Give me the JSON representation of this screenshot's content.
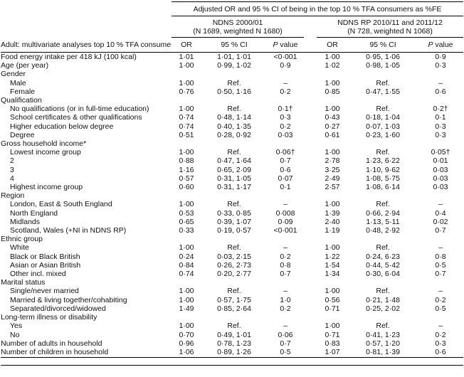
{
  "table": {
    "spanning_header": "Adjusted OR and 95 % CI of being in the top 10 % TFA consumers as %FE",
    "groups": [
      {
        "line1": "NDNS 2000/01",
        "line2": "(N 1689, weighted N 1680)"
      },
      {
        "line1": "NDNS RP 2010/11 and 2011/12",
        "line2": "(N 728, weighted N 1068)"
      }
    ],
    "stub_header": "Adult: multivariate analyses top 10 % TFA consumers",
    "col_headers": {
      "or": "OR",
      "ci": "95 % CI",
      "p_italic": "P",
      "p_rest": " value"
    },
    "rows": [
      {
        "label": "Food energy intake per 418 kJ (100 kcal)",
        "indent": 0,
        "cells": [
          "1·01",
          "1·01, 1·01",
          "<0·001",
          "1·00",
          "0·95, 1·06",
          "0·9"
        ]
      },
      {
        "label": "Age (per year)",
        "indent": 0,
        "cells": [
          "1·00",
          "0·99, 1·02",
          "0·9",
          "1·02",
          "0·98, 1·05",
          "0·3"
        ]
      },
      {
        "label": "Gender",
        "indent": 0,
        "cells": null
      },
      {
        "label": "Male",
        "indent": 1,
        "cells": [
          "1·00",
          "Ref.",
          "–",
          "1·00",
          "Ref.",
          "–"
        ]
      },
      {
        "label": "Female",
        "indent": 1,
        "cells": [
          "0·76",
          "0·50, 1·16",
          "0·2",
          "0·85",
          "0·47, 1·55",
          "0·6"
        ]
      },
      {
        "label": "Qualification",
        "indent": 0,
        "cells": null
      },
      {
        "label": "No qualifications (or in full-time education)",
        "indent": 1,
        "cells": [
          "1·00",
          "Ref.",
          "0·1†",
          "1·00",
          "Ref.",
          "0·2†"
        ]
      },
      {
        "label": "School certificates & other qualifications",
        "indent": 1,
        "cells": [
          "0·74",
          "0·48, 1·14",
          "0·3",
          "0·43",
          "0·18, 1·04",
          "0·1"
        ]
      },
      {
        "label": "Higher education below degree",
        "indent": 1,
        "cells": [
          "0·74",
          "0·40, 1·35",
          "0·2",
          "0·27",
          "0·07, 1·03",
          "0·3"
        ]
      },
      {
        "label": "Degree",
        "indent": 1,
        "cells": [
          "0·51",
          "0·28, 0·92",
          "0·03",
          "0·61",
          "0·23, 1·60",
          "0·3"
        ]
      },
      {
        "label": "Gross household income*",
        "indent": 0,
        "cells": null
      },
      {
        "label": "Lowest income group",
        "indent": 1,
        "cells": [
          "1·00",
          "Ref.",
          "0·06†",
          "1·00",
          "Ref.",
          "0·05†"
        ]
      },
      {
        "label": "2",
        "indent": 1,
        "cells": [
          "0·88",
          "0·47, 1·64",
          "0·7",
          "2·78",
          "1·23, 6·22",
          "0·01"
        ]
      },
      {
        "label": "3",
        "indent": 1,
        "cells": [
          "1·16",
          "0·65, 2·09",
          "0·6",
          "3·25",
          "1·10, 9·62",
          "0·03"
        ]
      },
      {
        "label": "4",
        "indent": 1,
        "cells": [
          "0·57",
          "0·31, 1·05",
          "0·07",
          "2·49",
          "1·08, 5·75",
          "0·03"
        ]
      },
      {
        "label": "Highest income group",
        "indent": 1,
        "cells": [
          "0·60",
          "0·31, 1·17",
          "0·1",
          "2·57",
          "1·08, 6·14",
          "0·03"
        ]
      },
      {
        "label": "Region",
        "indent": 0,
        "cells": null
      },
      {
        "label": "London, East & South England",
        "indent": 1,
        "cells": [
          "1·00",
          "Ref.",
          "–",
          "1·00",
          "Ref.",
          "–"
        ]
      },
      {
        "label": "North England",
        "indent": 1,
        "cells": [
          "0·53",
          "0·33, 0·85",
          "0·008",
          "1·39",
          "0·66, 2·94",
          "0·4"
        ]
      },
      {
        "label": "Midlands",
        "indent": 1,
        "cells": [
          "0·65",
          "0·39, 1·07",
          "0·09",
          "2·40",
          "1·13, 5·11",
          "0·02"
        ]
      },
      {
        "label": "Scotland, Wales (+NI in NDNS RP)",
        "indent": 1,
        "cells": [
          "0·33",
          "0·19, 0·57",
          "<0·001",
          "1·19",
          "0·48, 2·92",
          "0·7"
        ]
      },
      {
        "label": "Ethnic group",
        "indent": 0,
        "cells": null
      },
      {
        "label": "White",
        "indent": 1,
        "cells": [
          "1·00",
          "Ref.",
          "–",
          "1·00",
          "Ref.",
          "–"
        ]
      },
      {
        "label": "Black or Black British",
        "indent": 1,
        "cells": [
          "0·24",
          "0·03, 2·15",
          "0·2",
          "1·22",
          "0·24, 6·23",
          "0·8"
        ]
      },
      {
        "label": "Asian or Asian British",
        "indent": 1,
        "cells": [
          "0·84",
          "0·26, 2·73",
          "0·8",
          "1·54",
          "0·44, 5·42",
          "0·5"
        ]
      },
      {
        "label": "Other incl. mixed",
        "indent": 1,
        "cells": [
          "0·74",
          "0·20, 2·77",
          "0·7",
          "1·34",
          "0·30, 6·04",
          "0·7"
        ]
      },
      {
        "label": "Marital status",
        "indent": 0,
        "cells": null
      },
      {
        "label": "Single/never married",
        "indent": 1,
        "cells": [
          "1·00",
          "Ref.",
          "–",
          "1·00",
          "Ref.",
          "–"
        ]
      },
      {
        "label": "Married & living together/cohabiting",
        "indent": 1,
        "cells": [
          "1·00",
          "0·57, 1·75",
          "1·0",
          "0·56",
          "0·21, 1·48",
          "0·2"
        ]
      },
      {
        "label": "Separated/divorced/widowed",
        "indent": 1,
        "cells": [
          "1·49",
          "0·85, 2·64",
          "0·2",
          "0·71",
          "0·25, 2·02",
          "0·5"
        ]
      },
      {
        "label": "Long-term illness or disability",
        "indent": 0,
        "cells": null
      },
      {
        "label": "Yes",
        "indent": 1,
        "cells": [
          "1·00",
          "Ref.",
          "–",
          "1·00",
          "Ref.",
          "–"
        ]
      },
      {
        "label": "No",
        "indent": 1,
        "cells": [
          "0·70",
          "0·49, 1·01",
          "0·06",
          "0·71",
          "0·41, 1·23",
          "0·2"
        ]
      },
      {
        "label": "Number of adults in household",
        "indent": 0,
        "cells": [
          "0·96",
          "0·78, 1·23",
          "0·7",
          "0·83",
          "0·57, 1·20",
          "0·3"
        ]
      },
      {
        "label": "Number of children in household",
        "indent": 0,
        "cells": [
          "1·06",
          "0·89, 1·26",
          "0·5",
          "1·07",
          "0·81, 1·39",
          "0·6"
        ]
      }
    ]
  }
}
